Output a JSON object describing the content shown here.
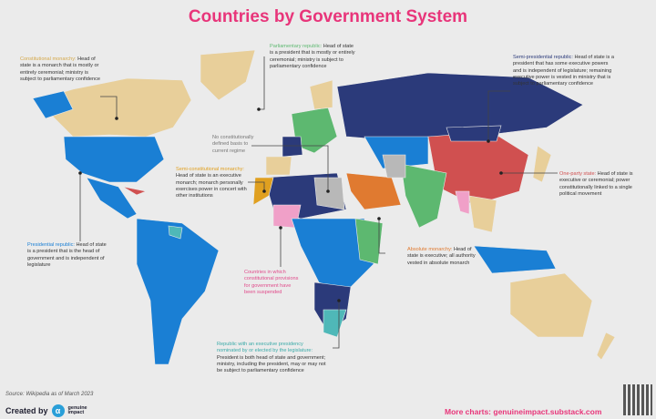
{
  "title": "Countries by Government System",
  "colors": {
    "title": "#e8357a",
    "constitutional_monarchy": "#e8cf9a",
    "presidential_republic": "#1a7fd4",
    "parliamentary_republic": "#5db870",
    "semi_presidential_republic": "#2b3a7a",
    "one_party_state": "#d05050",
    "absolute_monarchy": "#e07a30",
    "semi_constitutional_monarchy": "#e0a020",
    "no_constitutional_basis": "#b8b8b8",
    "suspended": "#f0a0c8",
    "executive_presidency_republic": "#4fb8b8"
  },
  "legend": {
    "constitutional_monarchy": {
      "label": "Constitutional monarchy:",
      "text": " Head of state is a monarch that is mostly or entirely ceremonial; ministry is subject to parliamentary confidence"
    },
    "parliamentary_republic": {
      "label": "Parliamentary republic:",
      "text": " Head of state is a president that is mostly or entirely ceremonial; ministry is subject to parliamentary confidence"
    },
    "semi_presidential_republic": {
      "label": "Semi-presidential republic:",
      "text": " Head of state is a president that has some executive powers and is independent of legislature; remaining executive power is vested in ministry that is subject to parliamentary confidence"
    },
    "no_constitutional_basis": {
      "label": "No constitutionally defined basis to current regime",
      "text": ""
    },
    "semi_constitutional_monarchy": {
      "label": "Semi-constitutional monarchy:",
      "text": " Head of state is an executive monarch; monarch personally exercises power in concert with other institutions"
    },
    "one_party_state": {
      "label": "One-party state:",
      "text": " Head of state is executive or ceremonial; power constitutionally linked to a single political movement"
    },
    "presidential_republic": {
      "label": "Presidential republic:",
      "text": " Head of state is a president that is the head of government and is independent of legislature"
    },
    "absolute_monarchy": {
      "label": "Absolute monarchy:",
      "text": " Head of state is executive; all authority vested in absolute monarch"
    },
    "suspended": {
      "label": "Countries in which constitutional provisions for government have been suspended",
      "text": ""
    },
    "executive_presidency_republic": {
      "label": "Republic with an executive presidency nominated by or elected by the legislature:",
      "text": " President is both head of state and government; ministry, including the president, may or may not be subject to parliamentary confidence"
    }
  },
  "footer": {
    "source": "Source: Wikipedia as of March 2023",
    "created_by": "Created by",
    "brand_line1": "genuine",
    "brand_line2": "impact",
    "more_charts": "More charts: genuineimpact.substack.com"
  }
}
